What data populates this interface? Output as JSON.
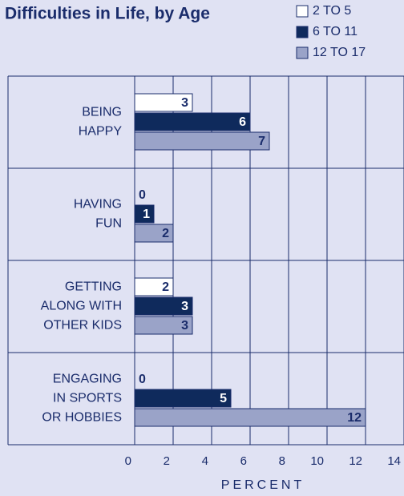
{
  "chart_data": {
    "type": "hbar",
    "title": "Difficulties in Life, by Age",
    "categories": [
      [
        "BEING",
        "HAPPY"
      ],
      [
        "HAVING",
        "FUN"
      ],
      [
        "GETTING",
        "ALONG WITH",
        "OTHER KIDS"
      ],
      [
        "ENGAGING",
        "IN SPORTS",
        "OR HOBBIES"
      ]
    ],
    "series": [
      {
        "name": "2 TO 5",
        "color": "#ffffff",
        "values": [
          3,
          0,
          2,
          0
        ]
      },
      {
        "name": "6 TO 11",
        "color": "#0f2a5c",
        "values": [
          6,
          1,
          3,
          5
        ]
      },
      {
        "name": "12 TO 17",
        "color": "#9aa3c8",
        "values": [
          7,
          2,
          3,
          12
        ]
      }
    ],
    "xlim": [
      0,
      14
    ],
    "xticks": [
      0,
      2,
      4,
      6,
      8,
      10,
      12,
      14
    ],
    "xlabel": "PERCENT",
    "grid": true
  }
}
